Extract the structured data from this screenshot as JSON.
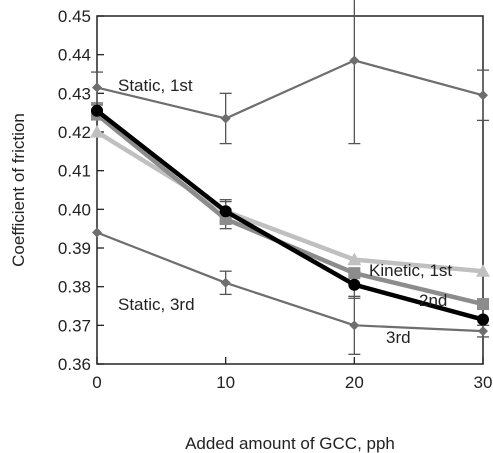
{
  "chart_data": {
    "type": "line",
    "xlabel": "Added amount of GCC, pph",
    "ylabel": "Coefficient of friction",
    "xlim": [
      0,
      30
    ],
    "ylim": [
      0.36,
      0.45
    ],
    "x_ticks": [
      0,
      10,
      20,
      30
    ],
    "y_ticks": [
      0.36,
      0.37,
      0.38,
      0.39,
      0.4,
      0.41,
      0.42,
      0.43,
      0.44,
      0.45
    ],
    "x_tick_labels": [
      "0",
      "10",
      "20",
      "30"
    ],
    "y_tick_labels": [
      "0.36",
      "0.37",
      "0.38",
      "0.39",
      "0.40",
      "0.41",
      "0.42",
      "0.43",
      "0.44",
      "0.45"
    ],
    "grid": false,
    "series": [
      {
        "name": "Static, 1st",
        "color": "#6e6e6e",
        "marker": "diamond",
        "x": [
          0,
          10,
          20,
          30
        ],
        "values": [
          0.4315,
          0.4235,
          0.4385,
          0.4295
        ],
        "error": [
          0.004,
          0.0065,
          0.0215,
          0.0065
        ]
      },
      {
        "name": "Static, 3rd",
        "color": "#6e6e6e",
        "marker": "diamond",
        "x": [
          0,
          10,
          20,
          30
        ],
        "values": [
          0.394,
          0.381,
          0.37,
          0.3685
        ],
        "error": [
          0.0,
          0.003,
          0.0075,
          0.0015
        ]
      },
      {
        "name": "Kinetic, 1st",
        "color": "#c0c0c0",
        "marker": "triangle",
        "x": [
          0,
          10,
          20,
          30
        ],
        "values": [
          0.42,
          0.3995,
          0.387,
          0.384
        ],
        "error": [
          0.0,
          0.003,
          0.0,
          0.0
        ]
      },
      {
        "name": "2nd",
        "color": "#8c8c8c",
        "marker": "square",
        "x": [
          0,
          10,
          20,
          30
        ],
        "values": [
          0.4245,
          0.3975,
          0.3835,
          0.3755
        ],
        "error": [
          0.0,
          0.0025,
          0.0,
          0.0
        ]
      },
      {
        "name": "3rd",
        "color": "#000000",
        "marker": "circle",
        "x": [
          0,
          10,
          20,
          30
        ],
        "values": [
          0.4255,
          0.3995,
          0.3805,
          0.3715
        ],
        "error": [
          0.0015,
          0.0025,
          0.0035,
          0.0
        ]
      }
    ]
  }
}
